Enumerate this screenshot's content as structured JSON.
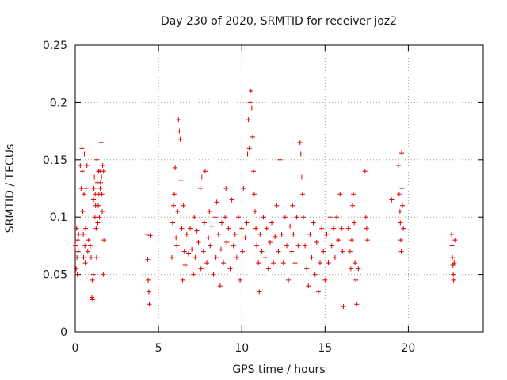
{
  "chart_data": {
    "type": "scatter",
    "title": "Day 230 of 2020, SRMTID for receiver joz2",
    "xlabel": "GPS time / hours",
    "ylabel": "SRMTID / TECUs",
    "xlim": [
      0,
      24.5
    ],
    "ylim": [
      0,
      0.25
    ],
    "x_ticks": [
      0,
      5,
      10,
      15,
      20
    ],
    "x_tick_labels": [
      "0",
      "5",
      "10",
      "15",
      "20"
    ],
    "y_ticks": [
      0,
      0.05,
      0.1,
      0.15,
      0.2,
      0.25
    ],
    "y_tick_labels": [
      "0",
      "0.05",
      "0.1",
      "0.15",
      "0.2",
      "0.25"
    ],
    "grid": true,
    "marker": "+",
    "color": "#e00000",
    "series": [
      {
        "name": "",
        "points": [
          [
            0.0,
            0.075
          ],
          [
            0.05,
            0.055
          ],
          [
            0.08,
            0.09
          ],
          [
            0.1,
            0.065
          ],
          [
            0.12,
            0.05
          ],
          [
            0.15,
            0.08
          ],
          [
            0.18,
            0.07
          ],
          [
            0.2,
            0.085
          ],
          [
            0.3,
            0.145
          ],
          [
            0.35,
            0.125
          ],
          [
            0.4,
            0.16
          ],
          [
            0.42,
            0.14
          ],
          [
            0.45,
            0.105
          ],
          [
            0.48,
            0.085
          ],
          [
            0.5,
            0.065
          ],
          [
            0.52,
            0.12
          ],
          [
            0.55,
            0.155
          ],
          [
            0.58,
            0.075
          ],
          [
            0.6,
            0.06
          ],
          [
            0.62,
            0.09
          ],
          [
            0.65,
            0.125
          ],
          [
            0.7,
            0.145
          ],
          [
            0.75,
            0.07
          ],
          [
            0.8,
            0.08
          ],
          [
            0.9,
            0.075
          ],
          [
            0.95,
            0.065
          ],
          [
            1.0,
            0.03
          ],
          [
            1.02,
            0.045
          ],
          [
            1.05,
            0.028
          ],
          [
            1.08,
            0.05
          ],
          [
            1.1,
            0.115
          ],
          [
            1.12,
            0.125
          ],
          [
            1.15,
            0.135
          ],
          [
            1.18,
            0.1
          ],
          [
            1.2,
            0.12
          ],
          [
            1.22,
            0.11
          ],
          [
            1.25,
            0.09
          ],
          [
            1.28,
            0.065
          ],
          [
            1.3,
            0.15
          ],
          [
            1.32,
            0.13
          ],
          [
            1.35,
            0.095
          ],
          [
            1.38,
            0.11
          ],
          [
            1.4,
            0.14
          ],
          [
            1.42,
            0.12
          ],
          [
            1.45,
            0.1
          ],
          [
            1.48,
            0.14
          ],
          [
            1.5,
            0.125
          ],
          [
            1.52,
            0.13
          ],
          [
            1.55,
            0.165
          ],
          [
            1.58,
            0.135
          ],
          [
            1.6,
            0.12
          ],
          [
            1.62,
            0.105
          ],
          [
            1.65,
            0.145
          ],
          [
            1.68,
            0.05
          ],
          [
            1.7,
            0.14
          ],
          [
            1.72,
            0.08
          ],
          [
            4.3,
            0.085
          ],
          [
            4.35,
            0.063
          ],
          [
            4.38,
            0.045
          ],
          [
            4.42,
            0.035
          ],
          [
            4.45,
            0.024
          ],
          [
            4.5,
            0.084
          ],
          [
            5.8,
            0.065
          ],
          [
            5.85,
            0.095
          ],
          [
            5.9,
            0.11
          ],
          [
            5.95,
            0.12
          ],
          [
            6.0,
            0.143
          ],
          [
            6.05,
            0.082
          ],
          [
            6.1,
            0.075
          ],
          [
            6.15,
            0.105
          ],
          [
            6.2,
            0.185
          ],
          [
            6.25,
            0.175
          ],
          [
            6.3,
            0.168
          ],
          [
            6.35,
            0.132
          ],
          [
            6.4,
            0.09
          ],
          [
            6.45,
            0.045
          ],
          [
            6.5,
            0.11
          ],
          [
            6.55,
            0.07
          ],
          [
            6.6,
            0.058
          ],
          [
            6.7,
            0.085
          ],
          [
            6.8,
            0.068
          ],
          [
            6.9,
            0.09
          ],
          [
            7.0,
            0.072
          ],
          [
            7.1,
            0.05
          ],
          [
            7.15,
            0.1
          ],
          [
            7.2,
            0.065
          ],
          [
            7.3,
            0.088
          ],
          [
            7.4,
            0.078
          ],
          [
            7.5,
            0.125
          ],
          [
            7.55,
            0.055
          ],
          [
            7.6,
            0.135
          ],
          [
            7.7,
            0.07
          ],
          [
            7.75,
            0.095
          ],
          [
            7.8,
            0.14
          ],
          [
            7.9,
            0.06
          ],
          [
            8.0,
            0.082
          ],
          [
            8.05,
            0.105
          ],
          [
            8.1,
            0.075
          ],
          [
            8.2,
            0.092
          ],
          [
            8.3,
            0.05
          ],
          [
            8.4,
            0.1
          ],
          [
            8.45,
            0.065
          ],
          [
            8.5,
            0.113
          ],
          [
            8.6,
            0.085
          ],
          [
            8.7,
            0.04
          ],
          [
            8.75,
            0.072
          ],
          [
            8.8,
            0.095
          ],
          [
            8.9,
            0.06
          ],
          [
            9.0,
            0.1
          ],
          [
            9.05,
            0.125
          ],
          [
            9.1,
            0.078
          ],
          [
            9.2,
            0.09
          ],
          [
            9.3,
            0.055
          ],
          [
            9.4,
            0.115
          ],
          [
            9.5,
            0.075
          ],
          [
            9.6,
            0.085
          ],
          [
            9.7,
            0.065
          ],
          [
            9.8,
            0.1
          ],
          [
            9.9,
            0.045
          ],
          [
            10.0,
            0.09
          ],
          [
            10.05,
            0.07
          ],
          [
            10.1,
            0.125
          ],
          [
            10.2,
            0.082
          ],
          [
            10.3,
            0.095
          ],
          [
            10.35,
            0.155
          ],
          [
            10.4,
            0.185
          ],
          [
            10.45,
            0.16
          ],
          [
            10.5,
            0.2
          ],
          [
            10.55,
            0.21
          ],
          [
            10.6,
            0.195
          ],
          [
            10.65,
            0.17
          ],
          [
            10.7,
            0.14
          ],
          [
            10.75,
            0.12
          ],
          [
            10.8,
            0.105
          ],
          [
            10.85,
            0.09
          ],
          [
            10.9,
            0.075
          ],
          [
            11.0,
            0.06
          ],
          [
            11.05,
            0.035
          ],
          [
            11.1,
            0.085
          ],
          [
            11.2,
            0.07
          ],
          [
            11.3,
            0.1
          ],
          [
            11.4,
            0.065
          ],
          [
            11.5,
            0.09
          ],
          [
            11.6,
            0.055
          ],
          [
            11.7,
            0.078
          ],
          [
            11.8,
            0.095
          ],
          [
            11.9,
            0.06
          ],
          [
            12.0,
            0.083
          ],
          [
            12.1,
            0.11
          ],
          [
            12.2,
            0.07
          ],
          [
            12.3,
            0.15
          ],
          [
            12.4,
            0.085
          ],
          [
            12.5,
            0.06
          ],
          [
            12.6,
            0.1
          ],
          [
            12.7,
            0.075
          ],
          [
            12.8,
            0.045
          ],
          [
            12.9,
            0.092
          ],
          [
            13.0,
            0.07
          ],
          [
            13.05,
            0.11
          ],
          [
            13.1,
            0.085
          ],
          [
            13.2,
            0.06
          ],
          [
            13.3,
            0.1
          ],
          [
            13.4,
            0.075
          ],
          [
            13.5,
            0.165
          ],
          [
            13.55,
            0.155
          ],
          [
            13.6,
            0.135
          ],
          [
            13.65,
            0.12
          ],
          [
            13.7,
            0.1
          ],
          [
            13.8,
            0.075
          ],
          [
            13.9,
            0.055
          ],
          [
            14.0,
            0.04
          ],
          [
            14.1,
            0.085
          ],
          [
            14.2,
            0.065
          ],
          [
            14.3,
            0.095
          ],
          [
            14.4,
            0.05
          ],
          [
            14.5,
            0.078
          ],
          [
            14.6,
            0.035
          ],
          [
            14.7,
            0.06
          ],
          [
            14.8,
            0.09
          ],
          [
            14.9,
            0.07
          ],
          [
            15.0,
            0.045
          ],
          [
            15.1,
            0.085
          ],
          [
            15.2,
            0.06
          ],
          [
            15.3,
            0.1
          ],
          [
            15.4,
            0.075
          ],
          [
            15.5,
            0.09
          ],
          [
            15.6,
            0.065
          ],
          [
            15.7,
            0.1
          ],
          [
            15.8,
            0.08
          ],
          [
            15.9,
            0.12
          ],
          [
            16.0,
            0.09
          ],
          [
            16.05,
            0.07
          ],
          [
            16.1,
            0.022
          ],
          [
            16.4,
            0.09
          ],
          [
            16.5,
            0.07
          ],
          [
            16.55,
            0.055
          ],
          [
            16.6,
            0.08
          ],
          [
            16.65,
            0.11
          ],
          [
            16.7,
            0.12
          ],
          [
            16.75,
            0.095
          ],
          [
            16.8,
            0.06
          ],
          [
            16.85,
            0.045
          ],
          [
            16.9,
            0.024
          ],
          [
            17.0,
            0.055
          ],
          [
            17.4,
            0.14
          ],
          [
            17.45,
            0.1
          ],
          [
            17.5,
            0.09
          ],
          [
            17.55,
            0.08
          ],
          [
            19.0,
            0.115
          ],
          [
            19.4,
            0.145
          ],
          [
            19.45,
            0.12
          ],
          [
            19.5,
            0.105
          ],
          [
            19.52,
            0.095
          ],
          [
            19.55,
            0.08
          ],
          [
            19.58,
            0.07
          ],
          [
            19.6,
            0.156
          ],
          [
            19.62,
            0.125
          ],
          [
            19.65,
            0.11
          ],
          [
            19.7,
            0.09
          ],
          [
            22.6,
            0.085
          ],
          [
            22.62,
            0.075
          ],
          [
            22.65,
            0.065
          ],
          [
            22.68,
            0.058
          ],
          [
            22.7,
            0.05
          ],
          [
            22.72,
            0.045
          ],
          [
            22.75,
            0.06
          ],
          [
            22.8,
            0.08
          ]
        ]
      }
    ]
  }
}
